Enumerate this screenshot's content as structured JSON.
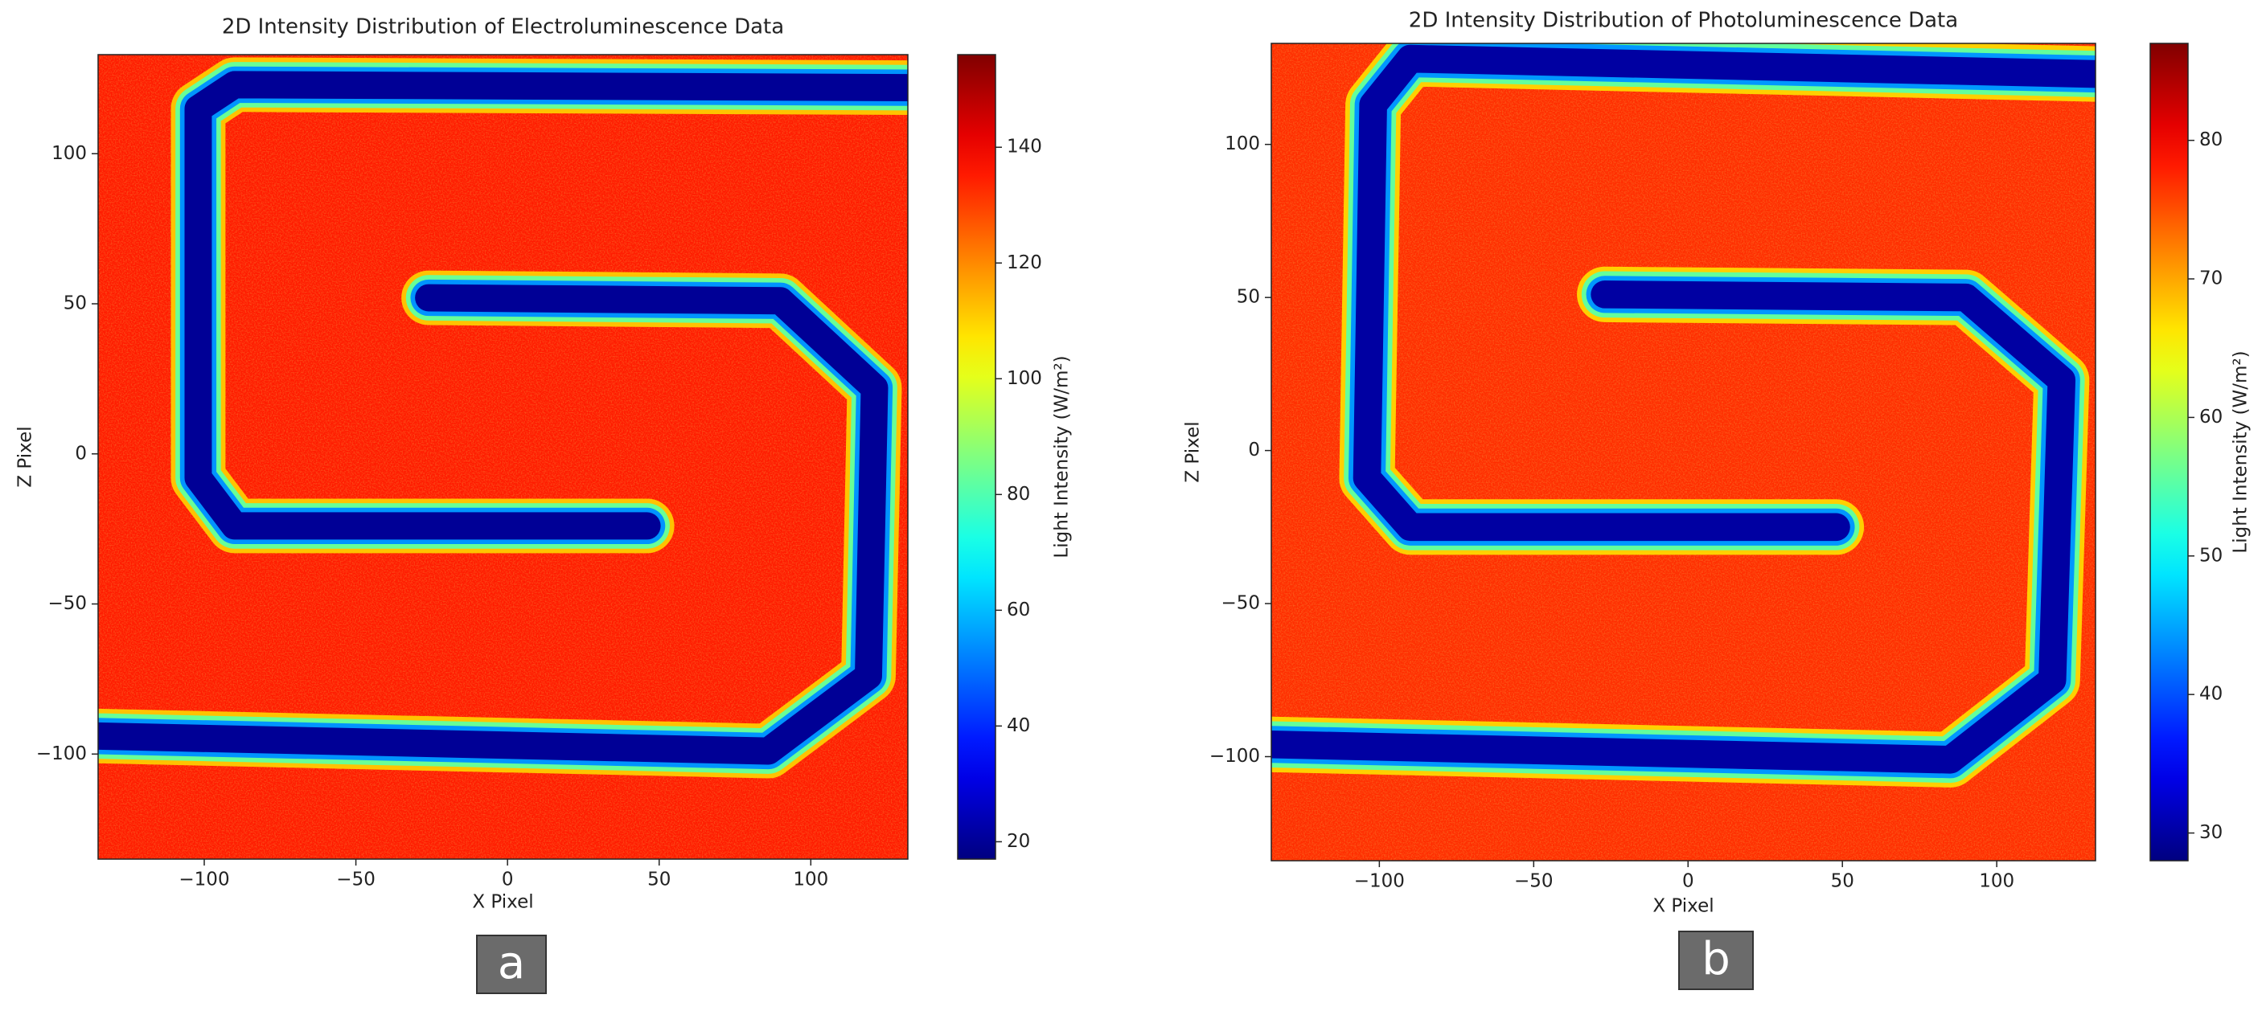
{
  "chart_data": [
    {
      "type": "heatmap",
      "title": "2D Intensity Distribution of Electroluminescence Data",
      "panel_label": "a",
      "x_label": "X Pixel",
      "y_label": "Z Pixel",
      "colorbar_label": "Light Intensity (W/m²)",
      "xlim": [
        -135,
        132
      ],
      "ylim": [
        -135,
        133
      ],
      "clim": [
        17,
        156
      ],
      "xticks": [
        {
          "value": -100,
          "label": "−100"
        },
        {
          "value": -50,
          "label": "−50"
        },
        0,
        50,
        100
      ],
      "yticks": [
        {
          "value": -100,
          "label": "−100"
        },
        {
          "value": -50,
          "label": "−50"
        },
        0,
        50,
        100
      ],
      "cticks": [
        20,
        40,
        60,
        80,
        100,
        120,
        140
      ],
      "colormap": "jet",
      "background_value": 135,
      "channels": [
        {
          "x": [
            132,
            -90,
            -102,
            -102,
            -90,
            46
          ],
          "z": [
            122,
            123,
            115,
            -8,
            -24,
            -24
          ],
          "value": 20
        },
        {
          "x": [
            -26,
            90,
            121,
            119,
            86,
            -135
          ],
          "z": [
            52,
            51,
            22,
            -74,
            -99,
            -94
          ],
          "value": 20
        }
      ]
    },
    {
      "type": "heatmap",
      "title": "2D Intensity Distribution of Photoluminescence Data",
      "panel_label": "b",
      "x_label": "X Pixel",
      "y_label": "Z Pixel",
      "colorbar_label": "Light Intensity (W/m²)",
      "xlim": [
        -135,
        132
      ],
      "ylim": [
        -134,
        133
      ],
      "clim": [
        28,
        87
      ],
      "xticks": [
        {
          "value": -100,
          "label": "−100"
        },
        {
          "value": -50,
          "label": "−50"
        },
        0,
        50,
        100
      ],
      "yticks": [
        {
          "value": -100,
          "label": "−100"
        },
        {
          "value": -50,
          "label": "−50"
        },
        0,
        50,
        100
      ],
      "cticks": [
        30,
        40,
        50,
        60,
        70,
        80
      ],
      "colormap": "jet",
      "background_value": 77,
      "channels": [
        {
          "x": [
            132,
            -90,
            -102,
            -104,
            -90,
            48
          ],
          "z": [
            123,
            128,
            113,
            -9,
            -25,
            -25
          ],
          "value": 30
        },
        {
          "x": [
            -27,
            90,
            121,
            118,
            85,
            -135
          ],
          "z": [
            51,
            50,
            23,
            -75,
            -101,
            -96
          ],
          "value": 30
        }
      ]
    }
  ]
}
